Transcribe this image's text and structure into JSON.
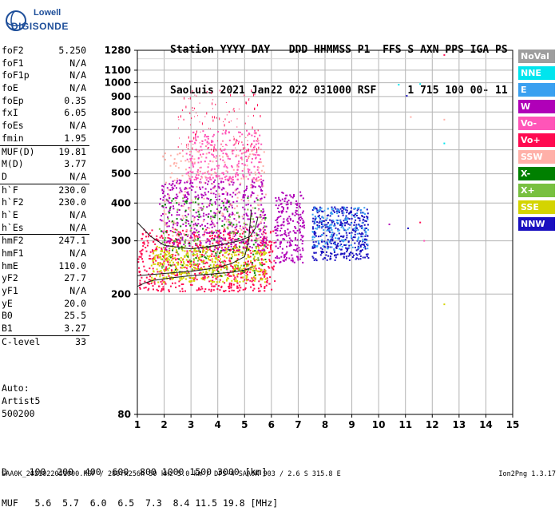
{
  "logo": {
    "brand_top": "Lowell",
    "brand_bottom": "DIGISONDE"
  },
  "header": {
    "line1": "Station YYYY DAY   DDD HHMMSS P1  FFS S AXN PPS IGA PS",
    "line2": "SaoLuis 2021 Jan22 022 031000 RSF     1 715 100 00- 11"
  },
  "params": [
    {
      "name": "foF2",
      "value": "5.250"
    },
    {
      "name": "foF1",
      "value": "N/A"
    },
    {
      "name": "foF1p",
      "value": "N/A"
    },
    {
      "name": "foE",
      "value": "N/A"
    },
    {
      "name": "foEp",
      "value": "0.35"
    },
    {
      "name": "fxI",
      "value": "6.05"
    },
    {
      "name": "foEs",
      "value": "N/A"
    },
    {
      "name": "fmin",
      "value": "1.95"
    },
    {
      "name": "MUF(D)",
      "value": "19.81",
      "sep": true
    },
    {
      "name": "M(D)",
      "value": "3.77"
    },
    {
      "name": "D",
      "value": "N/A"
    },
    {
      "name": "h`F",
      "value": "230.0",
      "sep": true
    },
    {
      "name": "h`F2",
      "value": "230.0"
    },
    {
      "name": "h`E",
      "value": "N/A"
    },
    {
      "name": "h`Es",
      "value": "N/A"
    },
    {
      "name": "hmF2",
      "value": "247.1",
      "sep": true
    },
    {
      "name": "hmF1",
      "value": "N/A"
    },
    {
      "name": "hmE",
      "value": "110.0"
    },
    {
      "name": "yF2",
      "value": "27.7"
    },
    {
      "name": "yF1",
      "value": "N/A"
    },
    {
      "name": "yE",
      "value": "20.0"
    },
    {
      "name": "B0",
      "value": "25.5"
    },
    {
      "name": "B1",
      "value": "3.27"
    },
    {
      "name": "C-level",
      "value": "33",
      "sep": true
    }
  ],
  "auto": {
    "line1": "Auto:",
    "line2": "Artist5",
    "line3": "500200"
  },
  "legend": [
    {
      "label": "NoVal",
      "color": "#9e9e9e"
    },
    {
      "label": "NNE",
      "color": "#00e5ee"
    },
    {
      "label": "E",
      "color": "#3aa0f0"
    },
    {
      "label": "W",
      "color": "#b000b8"
    },
    {
      "label": "Vo-",
      "color": "#ff55b8"
    },
    {
      "label": "Vo+",
      "color": "#ff0a50"
    },
    {
      "label": "SSW",
      "color": "#ffb0a8"
    },
    {
      "label": "X-",
      "color": "#008000"
    },
    {
      "label": "X+",
      "color": "#78c040"
    },
    {
      "label": "SSE",
      "color": "#d4d400"
    },
    {
      "label": "NNW",
      "color": "#1a10c0"
    }
  ],
  "bottom": {
    "d_row": "D    100  200  400  600  800 1000 1500 3000 [km]",
    "muf_row": "MUF   5.6  5.7  6.0  6.5  7.3  8.4 11.5 19.8 [MHz]"
  },
  "footer": {
    "left": "SAA0K_2021022031000.RSF / 280fx256h 50 kHz 5.0 km / DPS-4 SAA0K 903 / 2.6 S 315.8 E",
    "right": "Ion2Png 1.3.17"
  },
  "chart_data": {
    "type": "scatter",
    "x_ticks": [
      1,
      2,
      3,
      4,
      5,
      6,
      7,
      8,
      9,
      10,
      11,
      12,
      13,
      14,
      15
    ],
    "y_ticks": [
      80,
      200,
      300,
      400,
      500,
      600,
      700,
      800,
      900,
      1000,
      1100,
      1280
    ],
    "xlim": [
      1,
      15
    ],
    "ylim": [
      80,
      1280
    ],
    "y_scale": "log",
    "grid": true,
    "legend_position": "right",
    "traces": [
      {
        "name": "E-region trace",
        "x": [
          1.0,
          1.3,
          1.6,
          1.9,
          2.2,
          2.6,
          3.0,
          3.5,
          4.0,
          4.5,
          5.0,
          5.3
        ],
        "y": [
          212,
          218,
          222,
          224,
          226,
          228,
          230,
          232,
          234,
          236,
          240,
          246
        ]
      },
      {
        "name": "F2 model profile",
        "x": [
          1.0,
          1.5,
          2.0,
          2.5,
          3.0,
          3.5,
          4.0,
          4.5,
          5.0,
          5.15,
          5.25
        ],
        "y": [
          230,
          232,
          234,
          236,
          238,
          241,
          245,
          252,
          266,
          300,
          380
        ]
      },
      {
        "name": "virtual height trace",
        "x": [
          1.0,
          1.5,
          2.0,
          3.0,
          4.0,
          4.8,
          5.2,
          5.4,
          5.5
        ],
        "y": [
          345,
          310,
          290,
          282,
          290,
          300,
          310,
          330,
          360
        ]
      }
    ],
    "echo_clusters": [
      {
        "x_range": [
          1.0,
          6.1
        ],
        "y_range": [
          205,
          330
        ],
        "color": "#ff0a50"
      },
      {
        "x_range": [
          1.5,
          5.8
        ],
        "y_range": [
          220,
          290
        ],
        "color": "#d4d400"
      },
      {
        "x_range": [
          1.8,
          5.8
        ],
        "y_range": [
          280,
          480
        ],
        "color": "#b000b8"
      },
      {
        "x_range": [
          2.8,
          5.6
        ],
        "y_range": [
          480,
          700
        ],
        "color": "#ff55b8"
      },
      {
        "x_range": [
          2.5,
          5.6
        ],
        "y_range": [
          600,
          950
        ],
        "color": "#ff0a50"
      },
      {
        "x_range": [
          6.1,
          7.2
        ],
        "y_range": [
          255,
          440
        ],
        "color": "#b000b8"
      },
      {
        "x_range": [
          7.5,
          9.6
        ],
        "y_range": [
          260,
          390
        ],
        "color": "#1a10c0"
      },
      {
        "x_range": [
          7.5,
          9.6
        ],
        "y_range": [
          280,
          390
        ],
        "color": "#3aa0f0"
      },
      {
        "x_range": [
          1.9,
          5.8
        ],
        "y_range": [
          300,
          600
        ],
        "color": "#ffb0a8"
      },
      {
        "x_range": [
          1.8,
          5.8
        ],
        "y_range": [
          230,
          420
        ],
        "color": "#008000"
      },
      {
        "x_range": [
          1.8,
          5.8
        ],
        "y_range": [
          230,
          420
        ],
        "color": "#78c040"
      }
    ],
    "isolated_points": [
      {
        "x": 12.45,
        "y": 1235,
        "color": "#ff0a50"
      },
      {
        "x": 10.75,
        "y": 985,
        "color": "#00e5ee"
      },
      {
        "x": 11.05,
        "y": 905,
        "color": "#1a10c0"
      },
      {
        "x": 11.55,
        "y": 990,
        "color": "#00e5ee"
      },
      {
        "x": 11.2,
        "y": 770,
        "color": "#ffb0a8"
      },
      {
        "x": 12.45,
        "y": 755,
        "color": "#ffb0a8"
      },
      {
        "x": 12.45,
        "y": 630,
        "color": "#00e5ee"
      },
      {
        "x": 12.45,
        "y": 185,
        "color": "#d4d400"
      },
      {
        "x": 11.55,
        "y": 345,
        "color": "#ff0a50"
      },
      {
        "x": 11.7,
        "y": 300,
        "color": "#ff55b8"
      },
      {
        "x": 11.1,
        "y": 330,
        "color": "#1a10c0"
      },
      {
        "x": 10.4,
        "y": 340,
        "color": "#b000b8"
      }
    ]
  }
}
